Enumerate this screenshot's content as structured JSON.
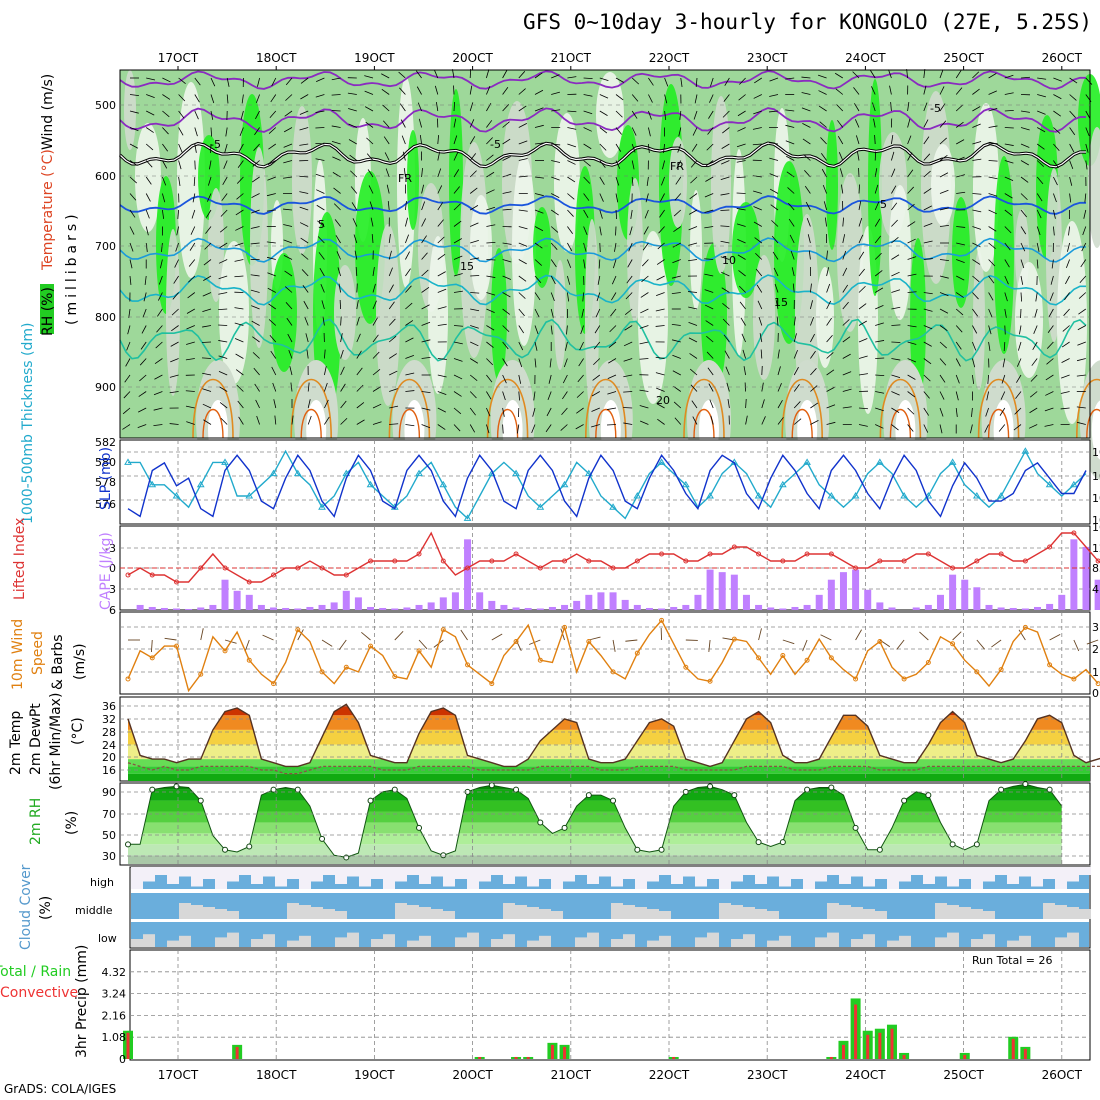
{
  "title": "GFS 0~10day 3-hourly for KONGOLO (27E, 5.25S)",
  "footer": "GrADS: COLA/IGES",
  "date_labels": [
    "17OCT",
    "18OCT",
    "19OCT",
    "20OCT",
    "21OCT",
    "22OCT",
    "23OCT",
    "24OCT",
    "25OCT",
    "26OCT"
  ],
  "colors": {
    "rh": "#22cc22",
    "temp": "#dd4422",
    "wind": "#000000",
    "slp": "#1133cc",
    "thick": "#22aacc",
    "li": "#dd3333",
    "cape": "#c080ff",
    "wind10": "#e08010",
    "cloud": "#6aaedc",
    "precip_total": "#22cc22",
    "precip_conv": "#ee3333"
  },
  "panels": {
    "upper": {
      "label_rh": "RH (%)",
      "label_temp": "Temperature (°C)",
      "label_wind": "Wind (m/s)",
      "label_units": "(millibars)",
      "yticks": [
        "500",
        "600",
        "700",
        "800",
        "900"
      ],
      "contour_labels": [
        "-5",
        "-5",
        "FR",
        "FR",
        "-5",
        "5",
        "5",
        "10",
        "15",
        "15",
        "20"
      ]
    },
    "slp": {
      "label_thick": "1000-500mb Thickness (dm)",
      "label_slp": "SLP (mb)",
      "left_ticks": [
        "582",
        "580",
        "578",
        "576"
      ],
      "right_ticks": [
        "1014",
        "1011",
        "1008",
        "1005"
      ]
    },
    "cape": {
      "label_li": "Lifted Index",
      "label_cape": "CAPE (J/kg)",
      "left_ticks": [
        "-3",
        "0",
        "3",
        "6"
      ],
      "right_ticks": [
        "1664",
        "1248",
        "832",
        "416"
      ]
    },
    "wind10": {
      "label_a": "10m Wind",
      "label_b": "Speed",
      "label_c": "& Barbs",
      "label_d": "(m/s)",
      "yticks": [
        "3",
        "2",
        "1",
        "0"
      ]
    },
    "temp2m": {
      "label_a": "2m Temp",
      "label_b": "2m DewPt",
      "label_c": "(6hr Min/Max)",
      "label_d": "(°C)",
      "yticks": [
        "36",
        "32",
        "28",
        "24",
        "20",
        "16"
      ]
    },
    "rh2m": {
      "label": "2m RH",
      "units": "(%)",
      "yticks": [
        "90",
        "70",
        "50",
        "30"
      ]
    },
    "cloud": {
      "label": "Cloud Cover",
      "units": "(%)",
      "levels": [
        "high",
        "middle",
        "low"
      ]
    },
    "precip": {
      "label_a": "Total / Rain",
      "label_b": "Convective",
      "label_c": "3hr Precip (mm)",
      "yticks": [
        "4.32",
        "3.24",
        "2.16",
        "1.08",
        "0"
      ],
      "run_total": "Run Total = 26"
    }
  },
  "chart_data": {
    "type": "line",
    "x_start": "16OCT 15Z",
    "step_hours": 3,
    "slp": [
      1007,
      1006,
      1012,
      1013,
      1010,
      1011,
      1007,
      1006,
      1012,
      1014,
      1012,
      1008,
      1007,
      1011,
      1014,
      1012,
      1008,
      1006,
      1011,
      1014,
      1012,
      1008,
      1007,
      1012,
      1014,
      1012,
      1008,
      1006,
      1011,
      1014,
      1012,
      1008,
      1007,
      1012,
      1014,
      1012,
      1008,
      1006,
      1011,
      1014,
      1012,
      1008,
      1007,
      1011,
      1014,
      1012,
      1009,
      1007,
      1012,
      1014,
      1013,
      1009,
      1007,
      1011,
      1014,
      1012,
      1009,
      1007,
      1012,
      1014,
      1012,
      1009,
      1007,
      1011,
      1014,
      1012,
      1008,
      1006,
      1010,
      1013,
      1011,
      1008,
      1008,
      1009,
      1012,
      1013,
      1011,
      1009,
      1009,
      1012
    ],
    "thickness": [
      580,
      580,
      578,
      578,
      577,
      576,
      578,
      580,
      580,
      577,
      577,
      578,
      579,
      581,
      579,
      578,
      576,
      577,
      579,
      580,
      578,
      577,
      576,
      577,
      579,
      580,
      578,
      576,
      575,
      577,
      579,
      580,
      579,
      577,
      576,
      577,
      578,
      580,
      579,
      577,
      576,
      575,
      577,
      579,
      580,
      579,
      578,
      576,
      577,
      579,
      580,
      579,
      577,
      576,
      578,
      579,
      580,
      578,
      577,
      576,
      577,
      579,
      580,
      579,
      577,
      576,
      577,
      579,
      580,
      578,
      577,
      576,
      577,
      579,
      581,
      579,
      578,
      577,
      578,
      579
    ],
    "lifted_index": [
      1,
      0,
      1,
      1,
      2,
      2,
      0,
      -2,
      0,
      1,
      2,
      2,
      1,
      0,
      0,
      -1,
      0,
      1,
      1,
      0,
      -1,
      -1,
      -1,
      -1,
      -2,
      -5,
      -1,
      1,
      0,
      -1,
      -1,
      -1,
      -2,
      -1,
      0,
      -1,
      -1,
      -2,
      -1,
      -1,
      0,
      0,
      -1,
      -2,
      -2,
      -2,
      -1,
      -1,
      -2,
      -2,
      -3,
      -3,
      -2,
      -1,
      -1,
      -1,
      -2,
      -2,
      -2,
      -1,
      0,
      0,
      -1,
      -1,
      -1,
      -2,
      -2,
      -1,
      0,
      0,
      -1,
      -2,
      -2,
      -1,
      -1,
      -2,
      -3,
      -5,
      -5,
      -3,
      -1,
      0,
      0,
      0,
      0,
      -1,
      -2,
      -2
    ],
    "cape": [
      0,
      100,
      60,
      40,
      30,
      20,
      50,
      100,
      600,
      380,
      300,
      100,
      50,
      40,
      30,
      60,
      100,
      150,
      380,
      250,
      60,
      40,
      30,
      50,
      100,
      150,
      250,
      350,
      1400,
      350,
      180,
      100,
      50,
      40,
      30,
      60,
      100,
      180,
      300,
      350,
      350,
      200,
      100,
      40,
      30,
      60,
      100,
      300,
      800,
      750,
      700,
      300,
      100,
      50,
      30,
      60,
      100,
      300,
      600,
      750,
      800,
      400,
      150,
      50,
      0,
      50,
      100,
      300,
      700,
      600,
      450,
      100,
      50,
      40,
      30,
      60,
      120,
      300,
      1400,
      1250,
      600,
      280,
      250,
      200,
      150,
      200,
      150
    ],
    "wind10": [
      0.6,
      1.8,
      1.5,
      2.0,
      2.0,
      0.1,
      0.8,
      2.4,
      1.8,
      2.6,
      1.4,
      0.8,
      0.4,
      1.3,
      2.7,
      2.2,
      0.9,
      0.4,
      1.1,
      0.9,
      2.0,
      1.6,
      0.7,
      0.6,
      1.8,
      1.1,
      2.7,
      2.4,
      1.2,
      0.8,
      0.4,
      1.6,
      2.2,
      2.9,
      1.4,
      1.3,
      2.8,
      0.9,
      2.2,
      1.6,
      0.9,
      0.6,
      1.7,
      2.5,
      3.1,
      2.1,
      1.1,
      0.6,
      0.5,
      1.3,
      2.3,
      2.2,
      1.5,
      0.8,
      1.6,
      0.8,
      1.4,
      2.3,
      1.5,
      1.0,
      0.6,
      1.8,
      2.2,
      1.1,
      0.6,
      0.8,
      1.3,
      2.4,
      2.1,
      1.4,
      0.9,
      0.3,
      1.0,
      2.2,
      2.8,
      2.6,
      1.2,
      0.8,
      0.6,
      1.0,
      0.4
    ],
    "temp2m": [
      31,
      21,
      20,
      20,
      19,
      20,
      20,
      28,
      33,
      34,
      32,
      20,
      19,
      18,
      18,
      19,
      26,
      33,
      35,
      30,
      21,
      20,
      19,
      19,
      27,
      33,
      34,
      32,
      21,
      20,
      19,
      18,
      18,
      20,
      25,
      28,
      31,
      30,
      20,
      19,
      19,
      20,
      25,
      30,
      31,
      29,
      20,
      19,
      18,
      19,
      25,
      31,
      33,
      30,
      21,
      19,
      19,
      20,
      26,
      32,
      32,
      29,
      21,
      20,
      19,
      19,
      24,
      30,
      33,
      30,
      21,
      20,
      19,
      20,
      25,
      31,
      32,
      30,
      21,
      19,
      20,
      21
    ],
    "dewpt2m": [
      19,
      18,
      17,
      18,
      17,
      17,
      18,
      18,
      18,
      18,
      18,
      17,
      17,
      16,
      16,
      17,
      18,
      18,
      18,
      18,
      18,
      17,
      17,
      17,
      18,
      18,
      18,
      18,
      18,
      17,
      17,
      17,
      17,
      17,
      18,
      18,
      18,
      18,
      18,
      17,
      17,
      17,
      18,
      18,
      18,
      18,
      17,
      17,
      17,
      17,
      17,
      18,
      18,
      18,
      18,
      17,
      17,
      17,
      18,
      18,
      18,
      18,
      17,
      17,
      17,
      17,
      18,
      18,
      18,
      18,
      18,
      18,
      18,
      18,
      18,
      18,
      18,
      18,
      18,
      18,
      18,
      18
    ],
    "rh2m": [
      40,
      40,
      90,
      92,
      93,
      92,
      80,
      48,
      35,
      33,
      38,
      85,
      90,
      92,
      90,
      75,
      45,
      30,
      28,
      32,
      80,
      88,
      90,
      82,
      55,
      34,
      30,
      34,
      88,
      92,
      94,
      92,
      90,
      82,
      60,
      50,
      55,
      75,
      85,
      85,
      80,
      55,
      35,
      33,
      35,
      75,
      88,
      92,
      93,
      90,
      85,
      60,
      42,
      38,
      42,
      80,
      90,
      92,
      92,
      85,
      55,
      35,
      35,
      55,
      80,
      88,
      85,
      60,
      40,
      35,
      40,
      80,
      90,
      93,
      95,
      92,
      90,
      75
    ],
    "precip_total": [
      1.4,
      0,
      0,
      0,
      0,
      0,
      0,
      0,
      0,
      0.7,
      0,
      0,
      0,
      0,
      0,
      0,
      0,
      0,
      0,
      0,
      0,
      0,
      0,
      0,
      0,
      0,
      0,
      0,
      0,
      0.1,
      0,
      0,
      0.1,
      0.1,
      0,
      0.8,
      0.7,
      0,
      0,
      0,
      0,
      0,
      0,
      0,
      0,
      0.1,
      0,
      0,
      0,
      0,
      0,
      0,
      0,
      0,
      0,
      0,
      0,
      0,
      0.1,
      0.9,
      3.0,
      1.4,
      1.5,
      1.7,
      0.3,
      0,
      0,
      0,
      0,
      0.3,
      0,
      0,
      0,
      1.1,
      0.6,
      0,
      0,
      0,
      0,
      0,
      0,
      0,
      0
    ],
    "precip_conv": [
      1.3,
      0,
      0,
      0,
      0,
      0,
      0,
      0,
      0,
      0.6,
      0,
      0,
      0,
      0,
      0,
      0,
      0,
      0,
      0,
      0,
      0,
      0,
      0,
      0,
      0,
      0,
      0,
      0,
      0,
      0.1,
      0,
      0,
      0.1,
      0.1,
      0,
      0.7,
      0.6,
      0,
      0,
      0,
      0,
      0,
      0,
      0,
      0,
      0.1,
      0,
      0,
      0,
      0,
      0,
      0,
      0,
      0,
      0,
      0,
      0,
      0,
      0.1,
      0.7,
      2.7,
      1.2,
      1.3,
      1.5,
      0.2,
      0,
      0,
      0,
      0,
      0.2,
      0,
      0,
      0,
      1.0,
      0.5,
      0,
      0,
      0,
      0,
      0,
      0,
      0,
      0
    ]
  }
}
